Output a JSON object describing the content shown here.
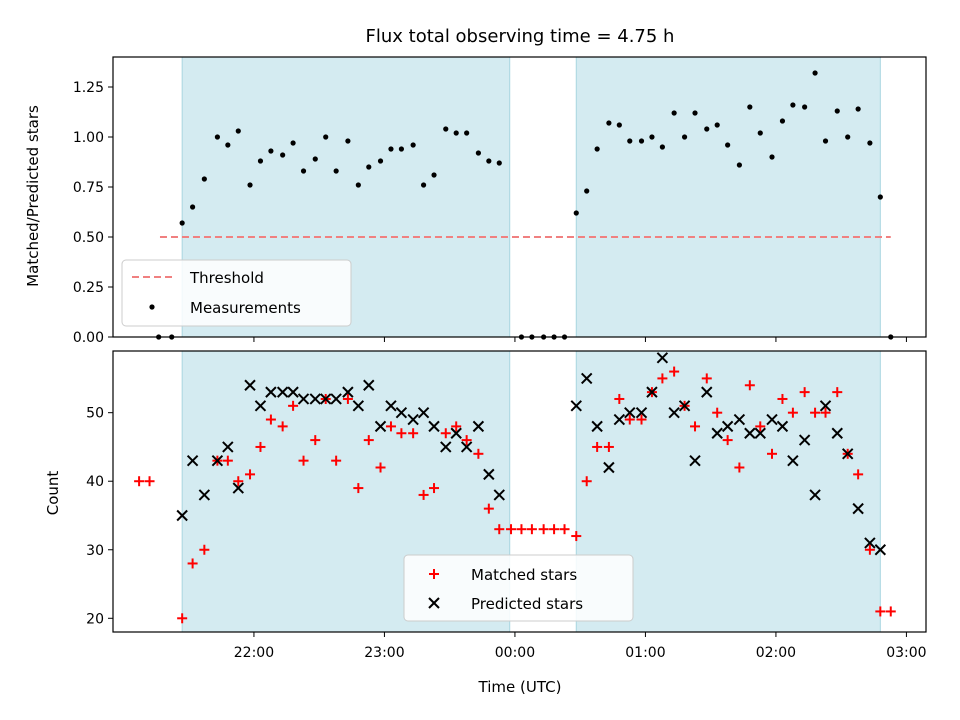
{
  "chart_data": [
    {
      "type": "scatter",
      "title": "Flux total observing time = 4.75 h",
      "xlabel": "",
      "ylabel": "Matched/Predicted stars",
      "ylim": [
        0,
        1.4
      ],
      "yticks": [
        "0.00",
        "0.25",
        "0.50",
        "0.75",
        "1.00",
        "1.25"
      ],
      "threshold": {
        "name": "Threshold",
        "value": 0.5,
        "color": "#f08080"
      },
      "series": [
        {
          "name": "Measurements",
          "color": "#000000",
          "points": [
            [
              21.27,
              0.0
            ],
            [
              21.37,
              0.0
            ],
            [
              21.45,
              0.57
            ],
            [
              21.53,
              0.65
            ],
            [
              21.62,
              0.79
            ],
            [
              21.72,
              1.0
            ],
            [
              21.8,
              0.96
            ],
            [
              21.88,
              1.03
            ],
            [
              21.97,
              0.76
            ],
            [
              22.05,
              0.88
            ],
            [
              22.13,
              0.93
            ],
            [
              22.22,
              0.91
            ],
            [
              22.3,
              0.97
            ],
            [
              22.38,
              0.83
            ],
            [
              22.47,
              0.89
            ],
            [
              22.55,
              1.0
            ],
            [
              22.63,
              0.83
            ],
            [
              22.72,
              0.98
            ],
            [
              22.8,
              0.76
            ],
            [
              22.88,
              0.85
            ],
            [
              22.97,
              0.88
            ],
            [
              23.05,
              0.94
            ],
            [
              23.13,
              0.94
            ],
            [
              23.22,
              0.96
            ],
            [
              23.3,
              0.76
            ],
            [
              23.38,
              0.81
            ],
            [
              23.47,
              1.04
            ],
            [
              23.55,
              1.02
            ],
            [
              23.63,
              1.02
            ],
            [
              23.72,
              0.92
            ],
            [
              23.8,
              0.88
            ],
            [
              23.88,
              0.87
            ],
            [
              24.05,
              0.0
            ],
            [
              24.13,
              0.0
            ],
            [
              24.22,
              0.0
            ],
            [
              24.3,
              0.0
            ],
            [
              24.38,
              0.0
            ],
            [
              24.47,
              0.62
            ],
            [
              24.55,
              0.73
            ],
            [
              24.63,
              0.94
            ],
            [
              24.72,
              1.07
            ],
            [
              24.8,
              1.06
            ],
            [
              24.88,
              0.98
            ],
            [
              24.97,
              0.98
            ],
            [
              25.05,
              1.0
            ],
            [
              25.13,
              0.95
            ],
            [
              25.22,
              1.12
            ],
            [
              25.3,
              1.0
            ],
            [
              25.38,
              1.12
            ],
            [
              25.47,
              1.04
            ],
            [
              25.55,
              1.06
            ],
            [
              25.63,
              0.96
            ],
            [
              25.72,
              0.86
            ],
            [
              25.8,
              1.15
            ],
            [
              25.88,
              1.02
            ],
            [
              25.97,
              0.9
            ],
            [
              26.05,
              1.08
            ],
            [
              26.13,
              1.16
            ],
            [
              26.22,
              1.15
            ],
            [
              26.3,
              1.32
            ],
            [
              26.38,
              0.98
            ],
            [
              26.47,
              1.13
            ],
            [
              26.55,
              1.0
            ],
            [
              26.63,
              1.14
            ],
            [
              26.72,
              0.97
            ],
            [
              26.8,
              0.7
            ],
            [
              26.88,
              0.0
            ]
          ]
        }
      ],
      "legend": [
        "Threshold",
        "Measurements"
      ],
      "legend_position": "lower-left",
      "shaded_spans": [
        [
          21.45,
          23.96
        ],
        [
          24.47,
          26.8
        ]
      ],
      "shade_color": "#d4ebf1",
      "xlim": [
        20.92,
        27.15
      ],
      "threshold_range": [
        21.28,
        26.88
      ]
    },
    {
      "type": "scatter",
      "title": "",
      "xlabel": "Time (UTC)",
      "ylabel": "Count",
      "ylim": [
        18,
        59
      ],
      "yticks": [
        "20",
        "30",
        "40",
        "50"
      ],
      "xticks": [
        "22:00",
        "23:00",
        "00:00",
        "01:00",
        "02:00",
        "03:00"
      ],
      "xtick_values": [
        22,
        23,
        24,
        25,
        26,
        27
      ],
      "legend": [
        "Matched stars",
        "Predicted stars"
      ],
      "legend_position": "lower-center",
      "series": [
        {
          "name": "Matched stars",
          "marker": "plus",
          "color": "#ff0000",
          "points": [
            [
              21.12,
              40
            ],
            [
              21.2,
              40
            ],
            [
              21.45,
              20
            ],
            [
              21.53,
              28
            ],
            [
              21.62,
              30
            ],
            [
              21.72,
              43
            ],
            [
              21.8,
              43
            ],
            [
              21.88,
              40
            ],
            [
              21.97,
              41
            ],
            [
              22.05,
              45
            ],
            [
              22.13,
              49
            ],
            [
              22.22,
              48
            ],
            [
              22.3,
              51
            ],
            [
              22.38,
              43
            ],
            [
              22.47,
              46
            ],
            [
              22.55,
              52
            ],
            [
              22.63,
              43
            ],
            [
              22.72,
              52
            ],
            [
              22.8,
              39
            ],
            [
              22.88,
              46
            ],
            [
              22.97,
              42
            ],
            [
              23.05,
              48
            ],
            [
              23.13,
              47
            ],
            [
              23.22,
              47
            ],
            [
              23.3,
              38
            ],
            [
              23.38,
              39
            ],
            [
              23.47,
              47
            ],
            [
              23.55,
              48
            ],
            [
              23.63,
              46
            ],
            [
              23.72,
              44
            ],
            [
              23.8,
              36
            ],
            [
              23.88,
              33
            ],
            [
              23.97,
              33
            ],
            [
              24.05,
              33
            ],
            [
              24.13,
              33
            ],
            [
              24.22,
              33
            ],
            [
              24.3,
              33
            ],
            [
              24.38,
              33
            ],
            [
              24.47,
              32
            ],
            [
              24.55,
              40
            ],
            [
              24.63,
              45
            ],
            [
              24.72,
              45
            ],
            [
              24.8,
              52
            ],
            [
              24.88,
              49
            ],
            [
              24.97,
              49
            ],
            [
              25.05,
              53
            ],
            [
              25.13,
              55
            ],
            [
              25.22,
              56
            ],
            [
              25.3,
              51
            ],
            [
              25.38,
              48
            ],
            [
              25.47,
              55
            ],
            [
              25.55,
              50
            ],
            [
              25.63,
              46
            ],
            [
              25.72,
              42
            ],
            [
              25.8,
              54
            ],
            [
              25.88,
              48
            ],
            [
              25.97,
              44
            ],
            [
              26.05,
              52
            ],
            [
              26.13,
              50
            ],
            [
              26.22,
              53
            ],
            [
              26.3,
              50
            ],
            [
              26.38,
              50
            ],
            [
              26.47,
              53
            ],
            [
              26.55,
              44
            ],
            [
              26.63,
              41
            ],
            [
              26.72,
              30
            ],
            [
              26.8,
              21
            ],
            [
              26.88,
              21
            ]
          ]
        },
        {
          "name": "Predicted stars",
          "marker": "x",
          "color": "#000000",
          "points": [
            [
              21.45,
              35
            ],
            [
              21.53,
              43
            ],
            [
              21.62,
              38
            ],
            [
              21.72,
              43
            ],
            [
              21.8,
              45
            ],
            [
              21.88,
              39
            ],
            [
              21.97,
              54
            ],
            [
              22.05,
              51
            ],
            [
              22.13,
              53
            ],
            [
              22.22,
              53
            ],
            [
              22.3,
              53
            ],
            [
              22.38,
              52
            ],
            [
              22.47,
              52
            ],
            [
              22.55,
              52
            ],
            [
              22.63,
              52
            ],
            [
              22.72,
              53
            ],
            [
              22.8,
              51
            ],
            [
              22.88,
              54
            ],
            [
              22.97,
              48
            ],
            [
              23.05,
              51
            ],
            [
              23.13,
              50
            ],
            [
              23.22,
              49
            ],
            [
              23.3,
              50
            ],
            [
              23.38,
              48
            ],
            [
              23.47,
              45
            ],
            [
              23.55,
              47
            ],
            [
              23.63,
              45
            ],
            [
              23.72,
              48
            ],
            [
              23.8,
              41
            ],
            [
              23.88,
              38
            ],
            [
              24.47,
              51
            ],
            [
              24.55,
              55
            ],
            [
              24.63,
              48
            ],
            [
              24.72,
              42
            ],
            [
              24.8,
              49
            ],
            [
              24.88,
              50
            ],
            [
              24.97,
              50
            ],
            [
              25.05,
              53
            ],
            [
              25.13,
              58
            ],
            [
              25.22,
              50
            ],
            [
              25.3,
              51
            ],
            [
              25.38,
              43
            ],
            [
              25.47,
              53
            ],
            [
              25.55,
              47
            ],
            [
              25.63,
              48
            ],
            [
              25.72,
              49
            ],
            [
              25.8,
              47
            ],
            [
              25.88,
              47
            ],
            [
              25.97,
              49
            ],
            [
              26.05,
              48
            ],
            [
              26.13,
              43
            ],
            [
              26.22,
              46
            ],
            [
              26.3,
              38
            ],
            [
              26.38,
              51
            ],
            [
              26.47,
              47
            ],
            [
              26.55,
              44
            ],
            [
              26.63,
              36
            ],
            [
              26.72,
              31
            ],
            [
              26.8,
              30
            ]
          ]
        }
      ],
      "shaded_spans": [
        [
          21.45,
          23.96
        ],
        [
          24.47,
          26.8
        ]
      ],
      "shade_color": "#d4ebf1",
      "xlim": [
        20.92,
        27.15
      ]
    }
  ]
}
